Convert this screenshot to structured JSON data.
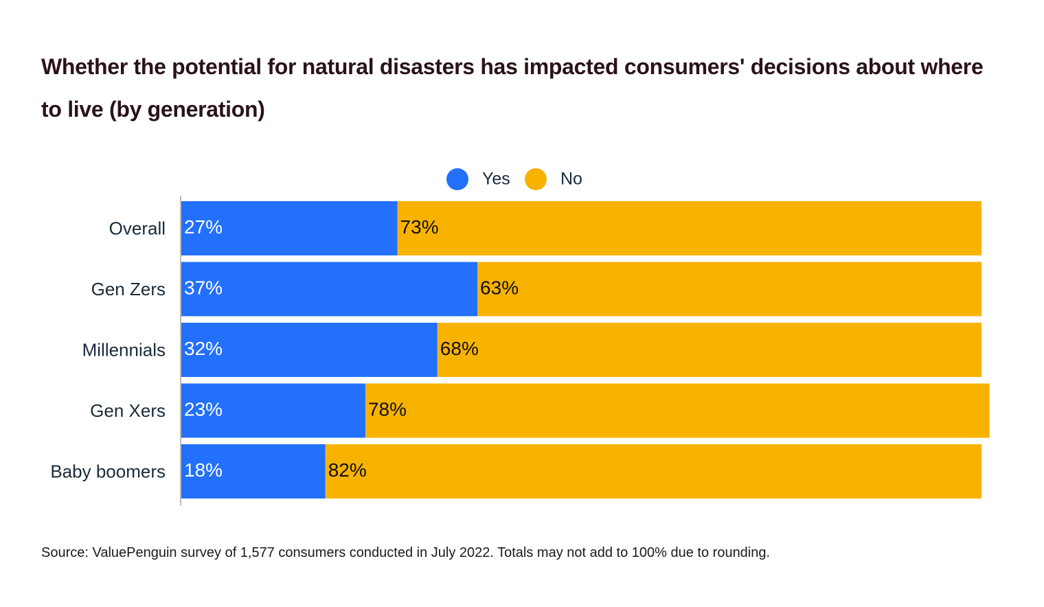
{
  "chart_data": {
    "type": "stacked_bar_horizontal",
    "title": "Whether the potential for natural disasters has impacted consumers' decisions about where to live (by generation)",
    "categories": [
      "Overall",
      "Gen Zers",
      "Millennials",
      "Gen Xers",
      "Baby boomers"
    ],
    "series": [
      {
        "name": "Yes",
        "color": "#2270fb",
        "values": [
          27,
          37,
          32,
          23,
          18
        ],
        "value_labels": [
          "27%",
          "37%",
          "32%",
          "23%",
          "18%"
        ]
      },
      {
        "name": "No",
        "color": "#f8b200",
        "values": [
          73,
          63,
          68,
          78,
          82
        ],
        "value_labels": [
          "73%",
          "63%",
          "68%",
          "78%",
          "82%"
        ]
      }
    ],
    "source": "Source: ValuePenguin survey of 1,577 consumers conducted in July 2022. Totals may not add to 100% due to rounding."
  }
}
